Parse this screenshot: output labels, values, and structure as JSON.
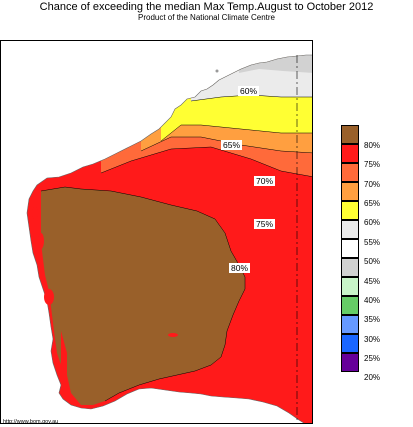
{
  "title": "Chance of exceeding the median Max Temp.August to October 2012",
  "subtitle": "Product of the National Climate Centre",
  "url": "http://www.bom.gov.au",
  "contours": [
    {
      "id": "c60",
      "label": "60%"
    },
    {
      "id": "c65",
      "label": "65%"
    },
    {
      "id": "c70",
      "label": "70%"
    },
    {
      "id": "c75",
      "label": "75%"
    },
    {
      "id": "c80",
      "label": "80%"
    }
  ],
  "legend": [
    {
      "label": "80%",
      "color": "#99602A"
    },
    {
      "label": "75%",
      "color": "#FF1A1A"
    },
    {
      "label": "70%",
      "color": "#FF6A3A"
    },
    {
      "label": "65%",
      "color": "#FF9F40"
    },
    {
      "label": "60%",
      "color": "#FFFF33"
    },
    {
      "label": "55%",
      "color": "#EBEBEB"
    },
    {
      "label": "50%",
      "color": "#FFFFFF"
    },
    {
      "label": "45%",
      "color": "#D2D2D2"
    },
    {
      "label": "40%",
      "color": "#C8F5C8"
    },
    {
      "label": "35%",
      "color": "#66CC66"
    },
    {
      "label": "30%",
      "color": "#6699FF"
    },
    {
      "label": "25%",
      "color": "#1A66FF"
    },
    {
      "label": "20%",
      "color": "#66009A"
    }
  ]
}
